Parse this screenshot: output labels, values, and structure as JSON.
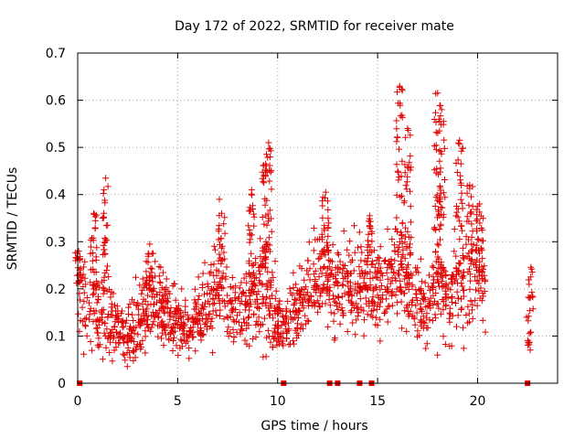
{
  "chart_data": {
    "type": "scatter",
    "title": "Day 172 of 2022, SRMTID for receiver mate",
    "xlabel": "GPS time / hours",
    "ylabel": "SRMTID / TECUs",
    "xlim": [
      0,
      24
    ],
    "ylim": [
      0,
      0.7
    ],
    "xticks": [
      0,
      5,
      10,
      15,
      20
    ],
    "yticks": [
      0,
      0.1,
      0.2,
      0.3,
      0.4,
      0.5,
      0.6,
      0.7
    ],
    "xtick_labels": [
      "0",
      "5",
      "10",
      "15",
      "20"
    ],
    "ytick_labels": [
      "0",
      "0.1",
      "0.2",
      "0.3",
      "0.4",
      "0.5",
      "0.6",
      "0.7"
    ],
    "grid": true,
    "marker": "plus",
    "color": "#e00000",
    "profile": [
      [
        0.0,
        0.2,
        0.06
      ],
      [
        0.5,
        0.16,
        0.06
      ],
      [
        1.0,
        0.15,
        0.05
      ],
      [
        1.5,
        0.13,
        0.05
      ],
      [
        2.0,
        0.11,
        0.04
      ],
      [
        2.5,
        0.1,
        0.04
      ],
      [
        3.0,
        0.13,
        0.05
      ],
      [
        3.5,
        0.17,
        0.05
      ],
      [
        4.0,
        0.16,
        0.05
      ],
      [
        4.5,
        0.14,
        0.04
      ],
      [
        5.0,
        0.12,
        0.04
      ],
      [
        5.5,
        0.11,
        0.04
      ],
      [
        6.0,
        0.13,
        0.04
      ],
      [
        6.5,
        0.16,
        0.05
      ],
      [
        7.0,
        0.19,
        0.06
      ],
      [
        7.5,
        0.17,
        0.05
      ],
      [
        8.0,
        0.15,
        0.05
      ],
      [
        8.5,
        0.18,
        0.06
      ],
      [
        9.0,
        0.21,
        0.07
      ],
      [
        9.5,
        0.19,
        0.07
      ],
      [
        10.0,
        0.12,
        0.04
      ],
      [
        10.5,
        0.12,
        0.04
      ],
      [
        11.0,
        0.14,
        0.05
      ],
      [
        11.5,
        0.19,
        0.05
      ],
      [
        12.0,
        0.23,
        0.06
      ],
      [
        12.5,
        0.22,
        0.06
      ],
      [
        13.0,
        0.2,
        0.06
      ],
      [
        13.5,
        0.21,
        0.06
      ],
      [
        14.0,
        0.2,
        0.06
      ],
      [
        14.5,
        0.21,
        0.06
      ],
      [
        15.0,
        0.19,
        0.06
      ],
      [
        15.5,
        0.22,
        0.06
      ],
      [
        16.0,
        0.25,
        0.08
      ],
      [
        16.5,
        0.2,
        0.06
      ],
      [
        17.0,
        0.16,
        0.05
      ],
      [
        17.5,
        0.16,
        0.05
      ],
      [
        18.0,
        0.22,
        0.08
      ],
      [
        18.5,
        0.17,
        0.06
      ],
      [
        19.0,
        0.2,
        0.07
      ],
      [
        19.5,
        0.22,
        0.07
      ],
      [
        20.0,
        0.24,
        0.07
      ],
      [
        20.4,
        0.21,
        0.06
      ]
    ],
    "bursts": [
      {
        "x": 0.05,
        "y_max": 0.28
      },
      {
        "x": 0.8,
        "y_max": 0.36
      },
      {
        "x": 1.4,
        "y_max": 0.435
      },
      {
        "x": 3.6,
        "y_max": 0.295
      },
      {
        "x": 7.2,
        "y_max": 0.36
      },
      {
        "x": 8.7,
        "y_max": 0.41
      },
      {
        "x": 9.4,
        "y_max": 0.465
      },
      {
        "x": 9.55,
        "y_max": 0.51
      },
      {
        "x": 12.4,
        "y_max": 0.405
      },
      {
        "x": 14.6,
        "y_max": 0.355
      },
      {
        "x": 16.1,
        "y_max": 0.63
      },
      {
        "x": 16.5,
        "y_max": 0.54
      },
      {
        "x": 18.0,
        "y_max": 0.615
      },
      {
        "x": 18.2,
        "y_max": 0.58
      },
      {
        "x": 19.1,
        "y_max": 0.515
      },
      {
        "x": 19.6,
        "y_max": 0.42
      },
      {
        "x": 20.1,
        "y_max": 0.38
      }
    ],
    "late_segment": {
      "x_start": 22.4,
      "x_end": 22.8,
      "y_min": 0.07,
      "y_max": 0.25
    },
    "zero_markers_x": [
      0.1,
      10.3,
      12.6,
      13.0,
      14.1,
      14.7,
      22.5
    ]
  }
}
